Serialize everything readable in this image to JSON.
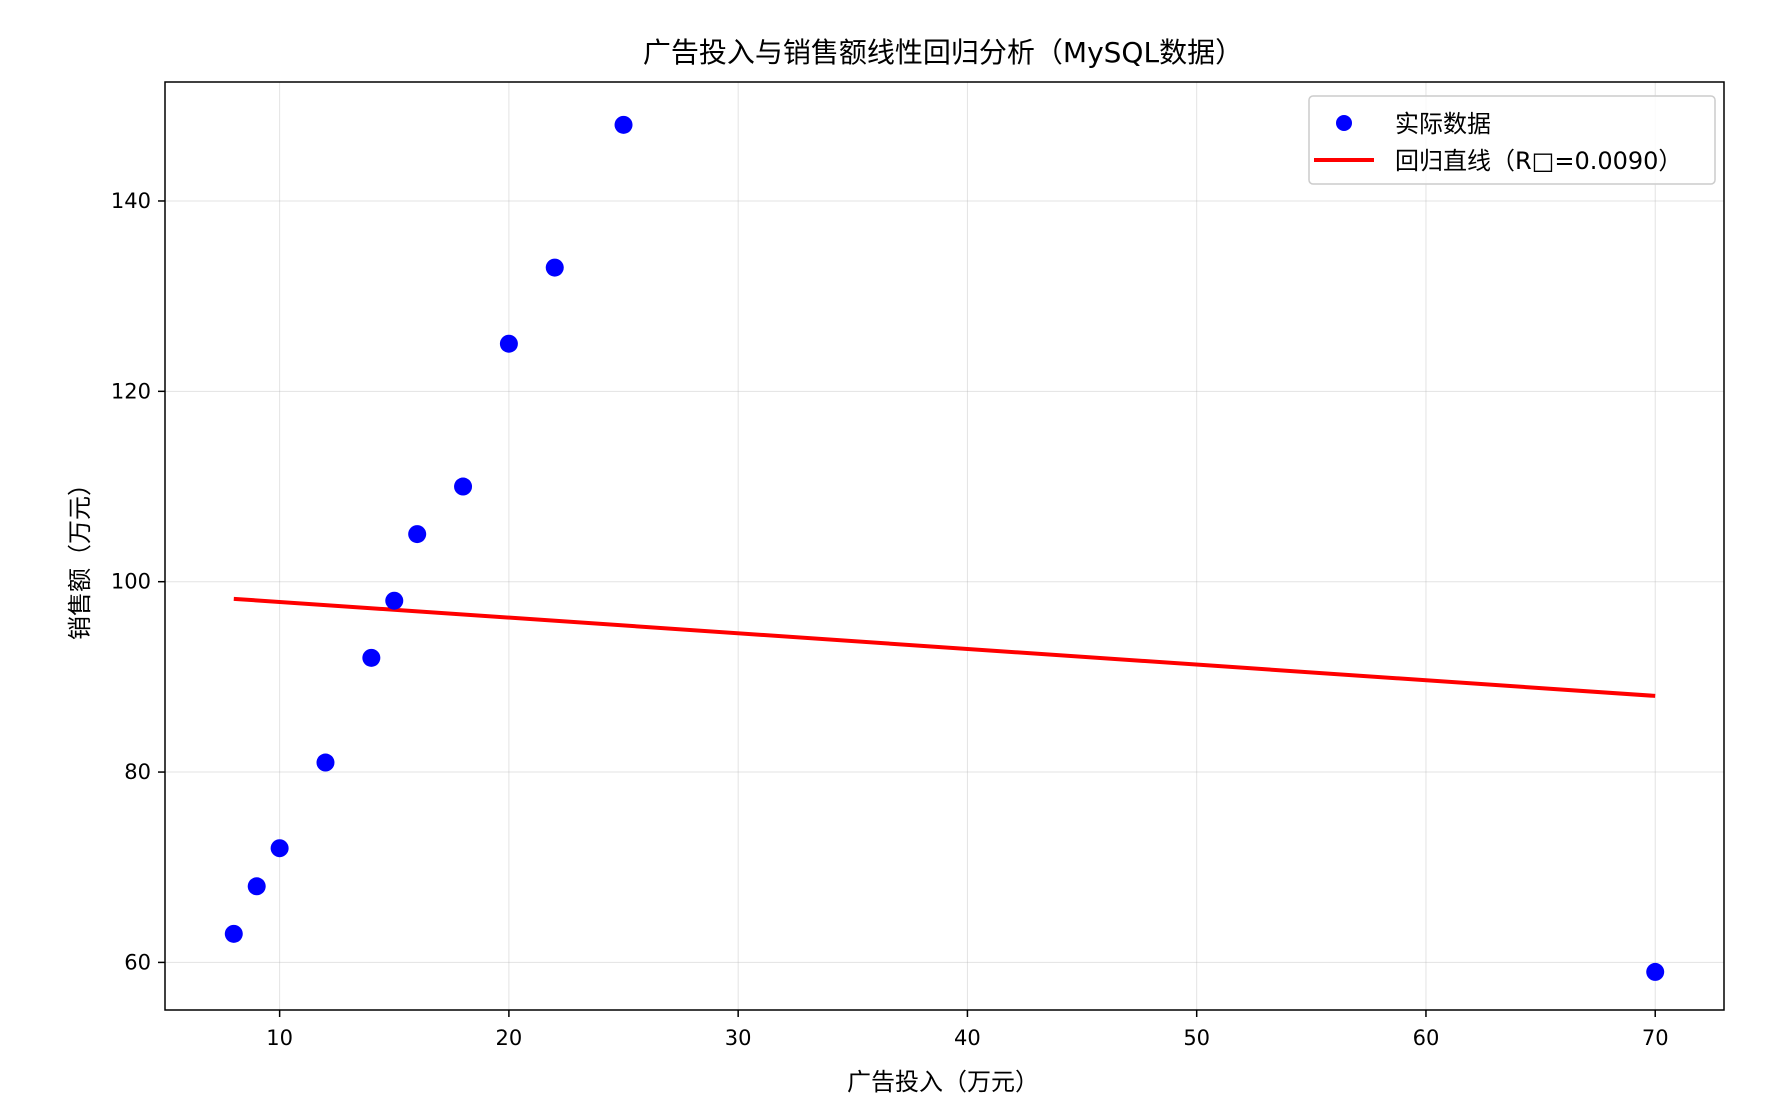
{
  "chart_data": {
    "type": "scatter",
    "title": "广告投入与销售额线性回归分析（MySQL数据）",
    "xlabel": "广告投入（万元）",
    "ylabel": "销售额（万元）",
    "xlim": [
      5,
      73
    ],
    "ylim": [
      55,
      152.5
    ],
    "x_ticks": [
      10,
      20,
      30,
      40,
      50,
      60,
      70
    ],
    "y_ticks": [
      60,
      80,
      100,
      120,
      140
    ],
    "grid": true,
    "legend_position": "top-right",
    "series": [
      {
        "name": "实际数据",
        "kind": "scatter",
        "color": "#0000ff",
        "x": [
          8,
          9,
          10,
          12,
          14,
          15,
          16,
          18,
          20,
          22,
          25,
          70
        ],
        "y": [
          63,
          68,
          72,
          81,
          92,
          98,
          105,
          110,
          125,
          133,
          148,
          59
        ]
      },
      {
        "name": "回归直线（R□=0.0090）",
        "kind": "line",
        "color": "#ff0000",
        "x": [
          8,
          70
        ],
        "y": [
          98.2,
          88.0
        ]
      }
    ]
  }
}
